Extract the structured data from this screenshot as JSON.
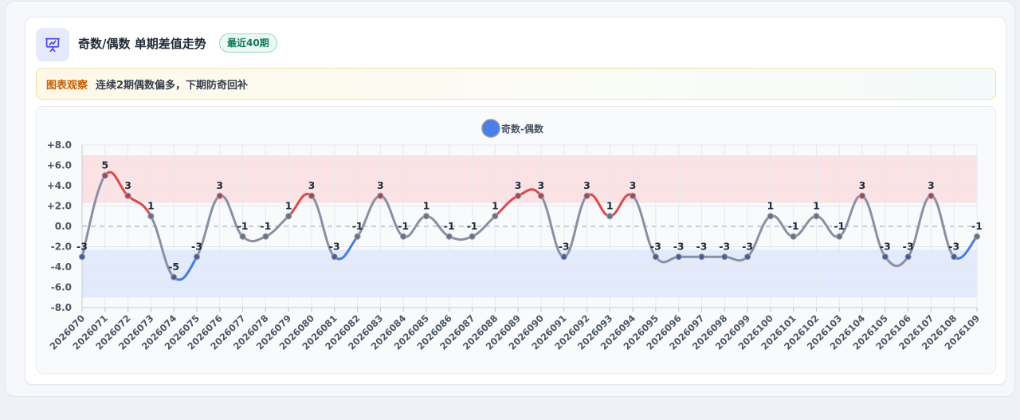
{
  "header": {
    "title": "奇数/偶数 单期差值走势",
    "badge": "最近40期",
    "icon": "presentation-chart-icon"
  },
  "note": {
    "label": "图表观察",
    "text": "连续2期偶数偏多，下期防奇回补"
  },
  "colors": {
    "accent": "#4f46e5",
    "positive": "#dc4a4a",
    "negative": "#4a7bd8",
    "neutral": "#8891a3",
    "legend_dot": "#4a7fea"
  },
  "chart_data": {
    "type": "line",
    "title": "",
    "xlabel": "",
    "ylabel": "",
    "ylim": [
      -8,
      8
    ],
    "y_ticks": [
      "+8.0",
      "+6.0",
      "+4.0",
      "+2.0",
      "0.0",
      "-2.0",
      "-4.0",
      "-6.0",
      "-8.0"
    ],
    "y_tick_values": [
      8,
      6,
      4,
      2,
      0,
      -2,
      -4,
      -6,
      -8
    ],
    "grid": true,
    "legend_position": "top-center",
    "zero_line": "dashed",
    "bands": [
      {
        "from": 2.3,
        "to": 7.0,
        "color": "#fbe2e5"
      },
      {
        "from": -7.0,
        "to": -2.3,
        "color": "#e3eafb"
      }
    ],
    "categories": [
      "2026070",
      "2026071",
      "2026072",
      "2026073",
      "2026074",
      "2026075",
      "2026076",
      "2026077",
      "2026078",
      "2026079",
      "2026080",
      "2026081",
      "2026082",
      "2026083",
      "2026084",
      "2026085",
      "2026086",
      "2026087",
      "2026088",
      "2026089",
      "2026090",
      "2026091",
      "2026092",
      "2026093",
      "2026094",
      "2026095",
      "2026096",
      "2026097",
      "2026098",
      "2026099",
      "2026100",
      "2026101",
      "2026102",
      "2026103",
      "2026104",
      "2026105",
      "2026106",
      "2026107",
      "2026108",
      "2026109"
    ],
    "series": [
      {
        "name": "奇数-偶数",
        "values": [
          -3,
          5,
          3,
          1,
          -5,
          -3,
          3,
          -1,
          -1,
          1,
          3,
          -3,
          -1,
          3,
          -1,
          1,
          -1,
          -1,
          1,
          3,
          3,
          -3,
          3,
          1,
          3,
          -3,
          -3,
          -3,
          -3,
          -3,
          1,
          -1,
          1,
          -1,
          3,
          -3,
          -3,
          3,
          -3,
          -1
        ],
        "point_labels": [
          "-3",
          "5",
          "3",
          "1",
          "-5",
          "-3",
          "3",
          "-1",
          "-1",
          "1",
          "3",
          "-3",
          "-1",
          "3",
          "-1",
          "1",
          "-1",
          "-1",
          "1",
          "3",
          "3",
          "-3",
          "3",
          "1",
          "3",
          "-3",
          "-3",
          "-3",
          "-3",
          "-3",
          "1",
          "-1",
          "1",
          "-1",
          "3",
          "-3",
          "-3",
          "3",
          "-3",
          "-1"
        ]
      }
    ]
  }
}
